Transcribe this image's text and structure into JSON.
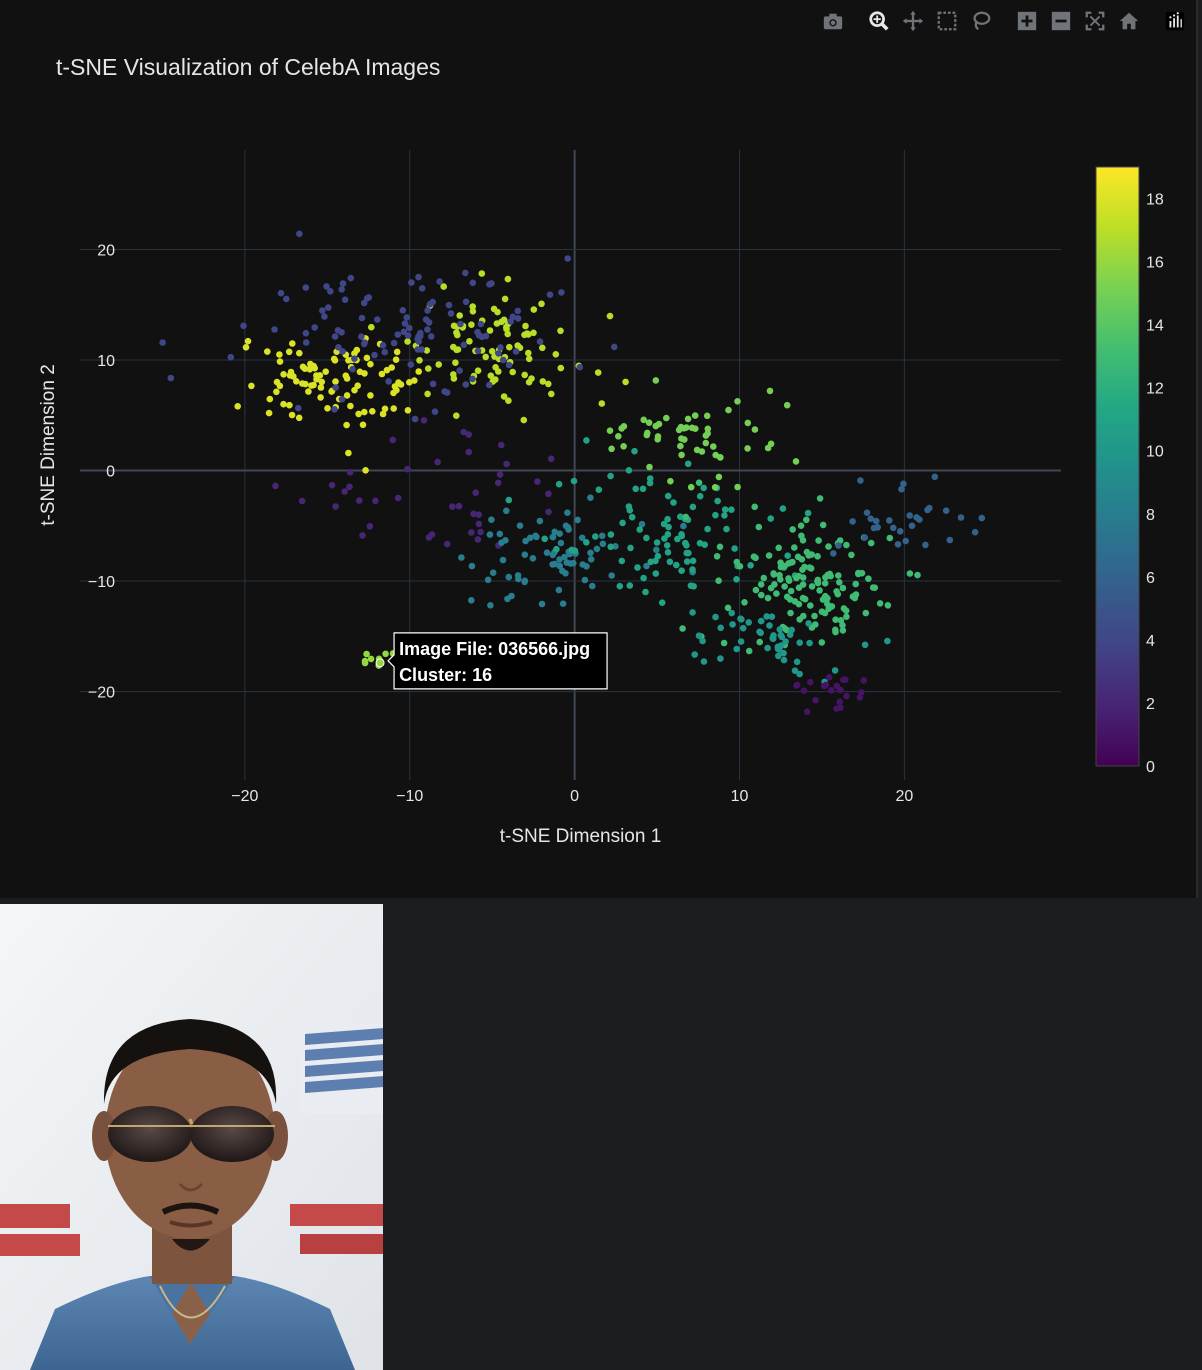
{
  "modebar": {
    "buttons": [
      {
        "name": "camera-icon",
        "title": "Download plot as a png"
      },
      {
        "name": "zoom-icon",
        "title": "Zoom"
      },
      {
        "name": "pan-icon",
        "title": "Pan"
      },
      {
        "name": "box-select-icon",
        "title": "Box Select"
      },
      {
        "name": "lasso-select-icon",
        "title": "Lasso Select"
      },
      {
        "name": "zoom-in-icon",
        "title": "Zoom in"
      },
      {
        "name": "zoom-out-icon",
        "title": "Zoom out"
      },
      {
        "name": "autoscale-icon",
        "title": "Autoscale"
      },
      {
        "name": "reset-axes-icon",
        "title": "Reset axes"
      },
      {
        "name": "plotly-logo-icon",
        "title": "Produced with Plotly"
      }
    ]
  },
  "hover": {
    "file_label": "Image File: 036566.jpg",
    "cluster_label": "Cluster: 16",
    "x": -11.8,
    "y": -17.4
  },
  "preview": {
    "file": "036566.jpg",
    "description": "photo of selected CelebA image"
  },
  "chart_data": {
    "type": "scatter",
    "title": "t-SNE Visualization of CelebA Images",
    "xlabel": "t-SNE Dimension 1",
    "ylabel": "t-SNE Dimension 2",
    "xlim": [
      -30,
      29.5
    ],
    "ylim": [
      -28,
      29
    ],
    "xticks": [
      -20,
      -10,
      0,
      10,
      20
    ],
    "xtick_labels": [
      "−20",
      "−10",
      "0",
      "10",
      "20"
    ],
    "yticks": [
      -20,
      -10,
      0,
      10,
      20
    ],
    "ytick_labels": [
      "−20",
      "−10",
      "0",
      "10",
      "20"
    ],
    "grid": true,
    "colorscale": "viridis",
    "colorbar": {
      "min": 0,
      "max": 19,
      "ticks": [
        0,
        2,
        4,
        6,
        8,
        10,
        12,
        14,
        16,
        18
      ],
      "tick_labels": [
        "0",
        "2",
        "4",
        "6",
        "8",
        "10",
        "12",
        "14",
        "16",
        "18"
      ]
    },
    "clusters": [
      {
        "cluster": 18,
        "center": [
          -15,
          8
        ],
        "spread": [
          4.5,
          4
        ],
        "n": 95
      },
      {
        "cluster": 17,
        "center": [
          -5,
          11
        ],
        "spread": [
          5,
          4
        ],
        "n": 90
      },
      {
        "cluster": 4,
        "center": [
          -10,
          13
        ],
        "spread": [
          9,
          6
        ],
        "n": 110
      },
      {
        "cluster": 2,
        "center": [
          -8,
          -3
        ],
        "spread": [
          7,
          5
        ],
        "n": 40
      },
      {
        "cluster": 8,
        "center": [
          -1,
          -8
        ],
        "spread": [
          5,
          4
        ],
        "n": 75
      },
      {
        "cluster": 11,
        "center": [
          6,
          -6
        ],
        "spread": [
          6,
          5
        ],
        "n": 90
      },
      {
        "cluster": 13,
        "center": [
          14,
          -10
        ],
        "spread": [
          5,
          5
        ],
        "n": 140
      },
      {
        "cluster": 15,
        "center": [
          8,
          3
        ],
        "spread": [
          6,
          4
        ],
        "n": 55
      },
      {
        "cluster": 10,
        "center": [
          12,
          -15
        ],
        "spread": [
          5,
          3
        ],
        "n": 50
      },
      {
        "cluster": 6,
        "center": [
          20,
          -4
        ],
        "spread": [
          4,
          4
        ],
        "n": 30
      },
      {
        "cluster": 1,
        "center": [
          16,
          -20
        ],
        "spread": [
          3,
          1.5
        ],
        "n": 22
      },
      {
        "cluster": 16,
        "center": [
          -12,
          -17
        ],
        "spread": [
          1,
          0.8
        ],
        "n": 9
      }
    ]
  }
}
